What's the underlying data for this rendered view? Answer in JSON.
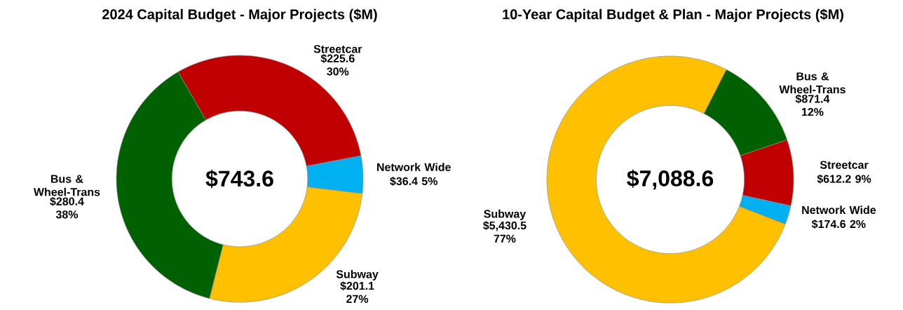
{
  "chart_data": [
    {
      "type": "donut",
      "title": "2024 Capital Budget - Major Projects ($M)",
      "categories": [
        "Streetcar",
        "Network Wide",
        "Subway",
        "Bus & Wheel-Trans"
      ],
      "values": [
        225.6,
        36.4,
        201.1,
        280.4
      ],
      "colors": [
        "#c00000",
        "#00b0f0",
        "#ffc000",
        "#006100"
      ],
      "value_labels": [
        "$225.6 30%",
        "$36.4 5%",
        "$201.1 27%",
        "$280.4 38%"
      ],
      "annotations": [
        "$743.6"
      ]
    },
    {
      "type": "donut",
      "title": "10-Year Capital Budget & Plan - Major Projects ($M)",
      "categories": [
        "Bus & Wheel-Trans",
        "Streetcar",
        "Network Wide",
        "Subway"
      ],
      "values": [
        871.4,
        612.2,
        174.6,
        5430.5
      ],
      "colors": [
        "#006100",
        "#c00000",
        "#00b0f0",
        "#ffc000"
      ],
      "value_labels": [
        "$871.4 12%",
        "$612.2 9%",
        "$174.6 2%",
        "$5,430.5 77%"
      ],
      "annotations": [
        "$7,088.6"
      ]
    }
  ]
}
